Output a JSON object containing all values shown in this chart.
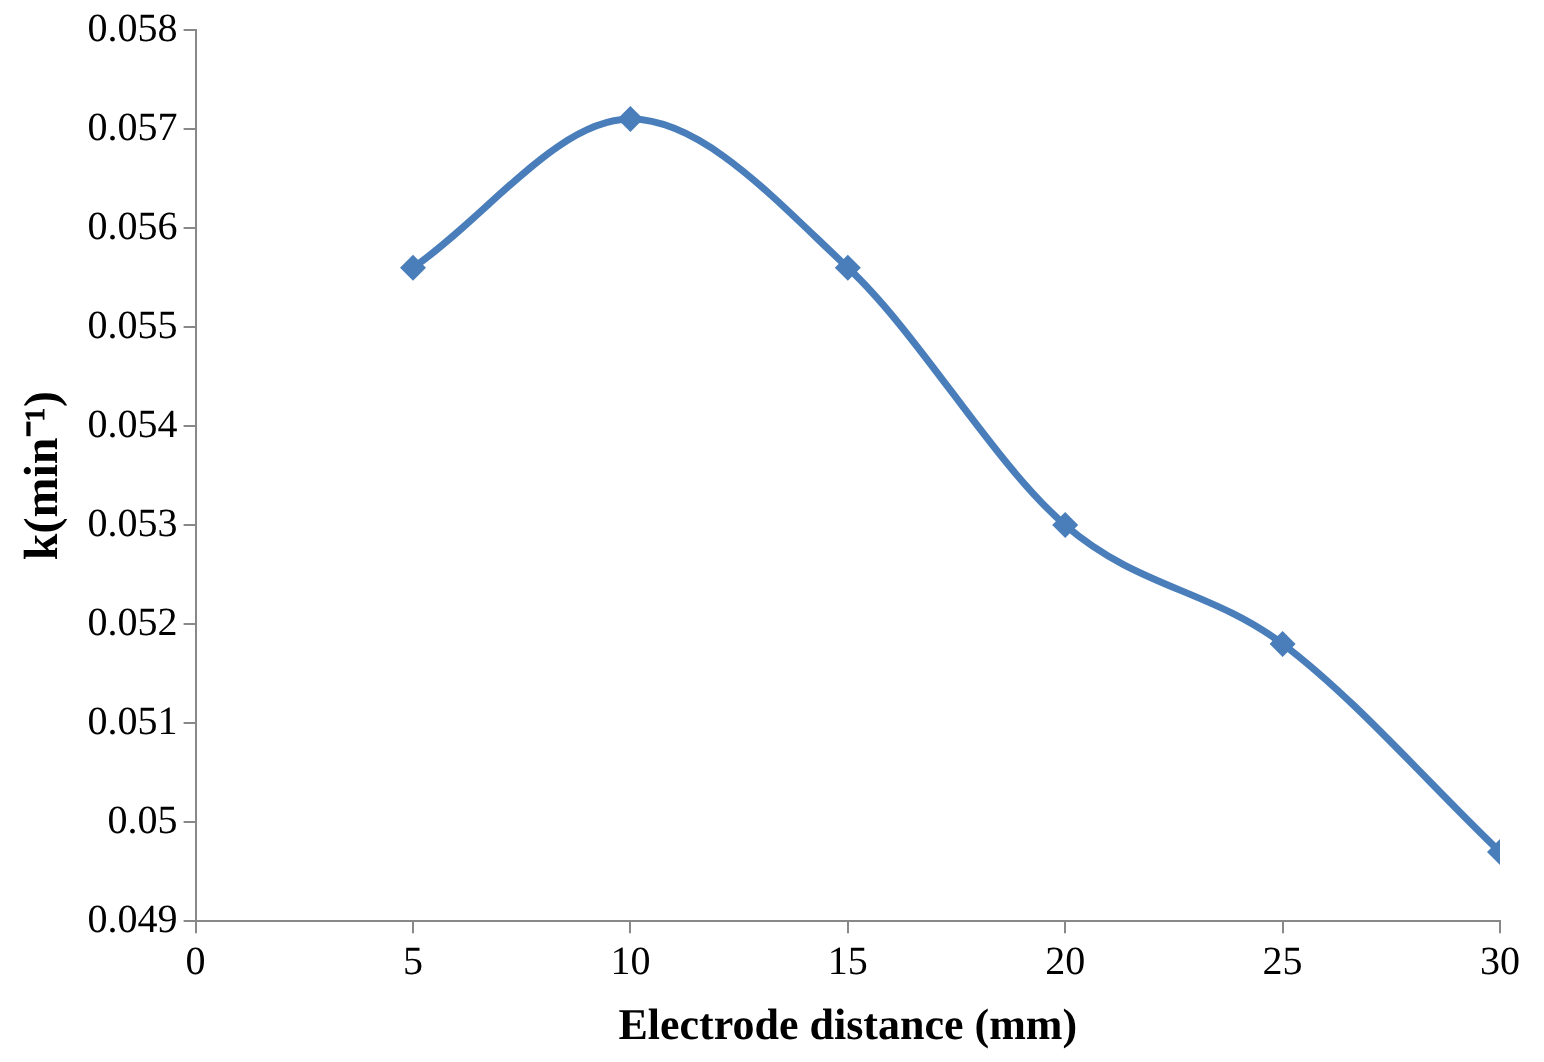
{
  "chart_data": {
    "type": "line",
    "xlabel": "Electrode distance (mm)",
    "ylabel": "k(min⁻¹)",
    "x": [
      5,
      10,
      15,
      20,
      25,
      30
    ],
    "series": [
      {
        "color": "#4a7ebb",
        "values": [
          0.0556,
          0.0571,
          0.0556,
          0.053,
          0.0518,
          0.0497
        ]
      }
    ],
    "xlim": [
      0,
      30
    ],
    "xticks": [
      0,
      5,
      10,
      15,
      20,
      25,
      30
    ],
    "ylim": [
      0.049,
      0.058
    ],
    "yticks": [
      0.049,
      0.05,
      0.051,
      0.052,
      0.053,
      0.054,
      0.055,
      0.056,
      0.057,
      0.058
    ],
    "grid": false,
    "legend": false,
    "marker": "diamond",
    "line_style": "solid"
  }
}
